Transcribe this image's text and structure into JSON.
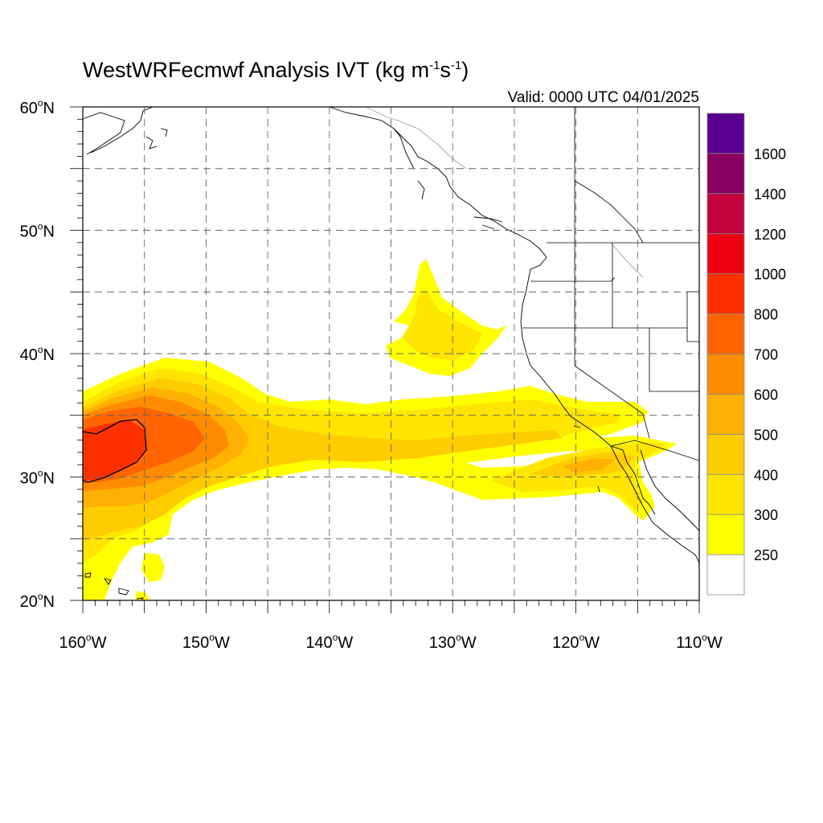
{
  "title": {
    "text": "WestWRFecmwf Analysis IVT (kg m",
    "exp1": "-1",
    "mid": "s",
    "exp2": "-1",
    "close": ")"
  },
  "valid": "Valid: 0000 UTC 04/01/2025",
  "axes": {
    "lon_ticks": [
      {
        "value": -160,
        "label": "160",
        "hemi": "W"
      },
      {
        "value": -150,
        "label": "150",
        "hemi": "W"
      },
      {
        "value": -140,
        "label": "140",
        "hemi": "W"
      },
      {
        "value": -130,
        "label": "130",
        "hemi": "W"
      },
      {
        "value": -120,
        "label": "120",
        "hemi": "W"
      },
      {
        "value": -110,
        "label": "110",
        "hemi": "W"
      }
    ],
    "lat_ticks": [
      {
        "value": 60,
        "label": "60",
        "hemi": "N"
      },
      {
        "value": 50,
        "label": "50",
        "hemi": "N"
      },
      {
        "value": 40,
        "label": "40",
        "hemi": "N"
      },
      {
        "value": 30,
        "label": "30",
        "hemi": "N"
      },
      {
        "value": 20,
        "label": "20",
        "hemi": "N"
      }
    ],
    "lon_range": [
      -160,
      -110
    ],
    "lat_range": [
      20,
      60
    ],
    "grid": "dashed every 5 degrees"
  },
  "colorbar": {
    "levels": [
      {
        "label": "",
        "color": "#ffffff"
      },
      {
        "label": "250",
        "color": "#ffff00"
      },
      {
        "label": "300",
        "color": "#ffe500"
      },
      {
        "label": "400",
        "color": "#ffcc00"
      },
      {
        "label": "500",
        "color": "#ffb000"
      },
      {
        "label": "600",
        "color": "#ff8c00"
      },
      {
        "label": "700",
        "color": "#ff6400"
      },
      {
        "label": "800",
        "color": "#ff3000"
      },
      {
        "label": "1000",
        "color": "#ee0012"
      },
      {
        "label": "1200",
        "color": "#c4003e"
      },
      {
        "label": "1400",
        "color": "#8a0060"
      },
      {
        "label": "1600",
        "color": "#5a0090"
      }
    ]
  }
}
